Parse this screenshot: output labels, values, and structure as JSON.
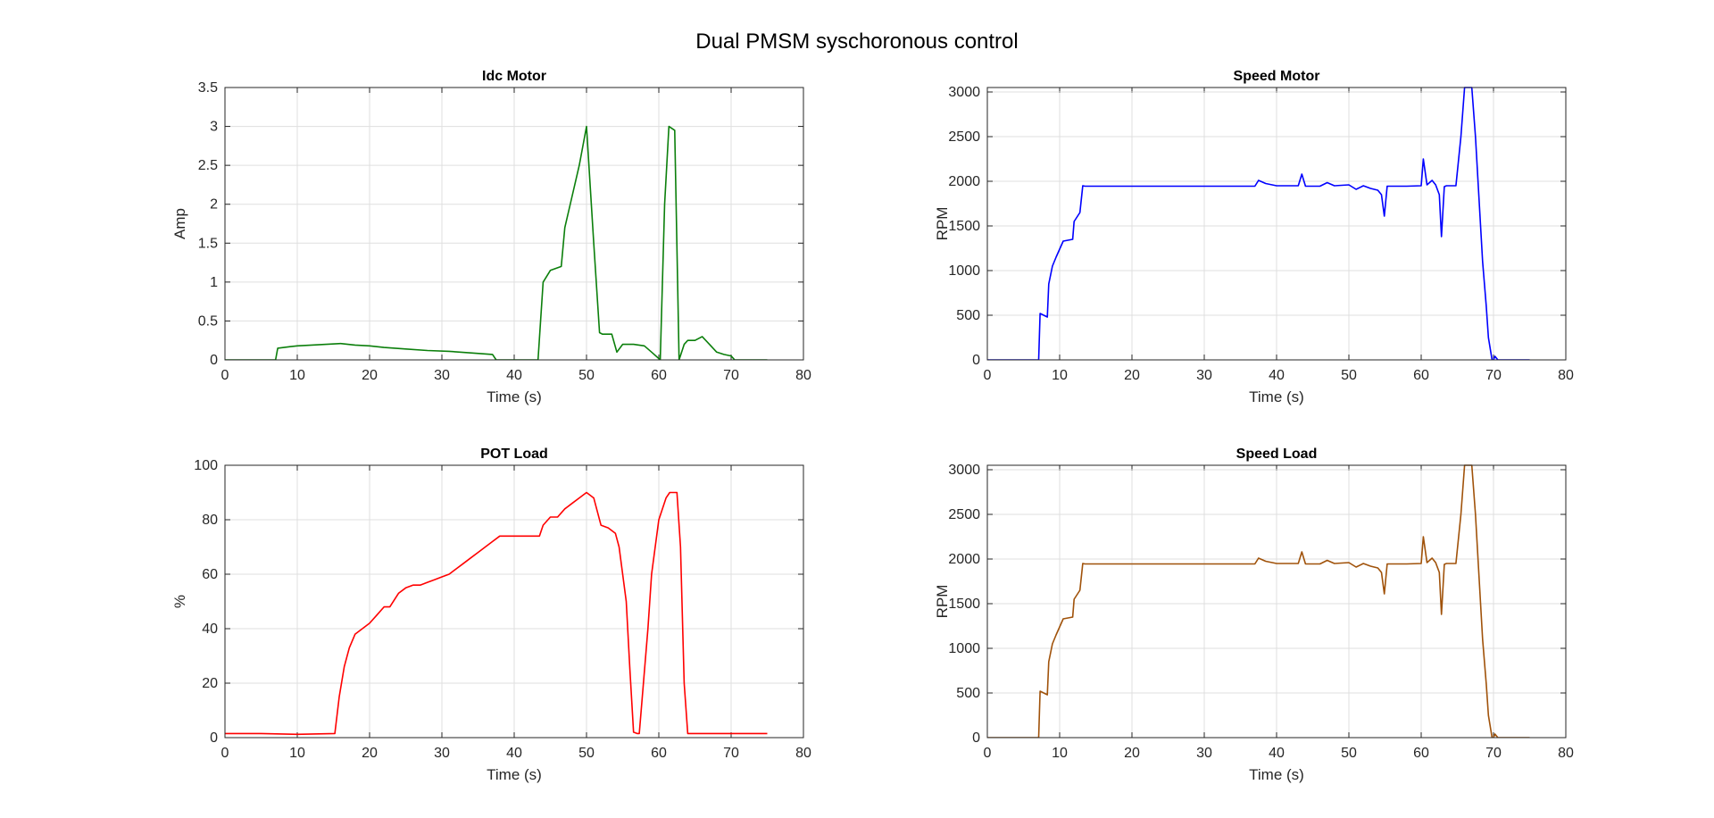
{
  "figure_title": "Dual PMSM syschoronous control",
  "chart_data": [
    {
      "type": "line",
      "title": "Idc Motor",
      "xlabel": "Time (s)",
      "ylabel": "Amp",
      "xlim": [
        0,
        80
      ],
      "ylim": [
        0,
        3.5
      ],
      "xticks": [
        "0",
        "10",
        "20",
        "30",
        "40",
        "50",
        "60",
        "70",
        "80"
      ],
      "yticks": [
        "0",
        "0.5",
        "1",
        "1.5",
        "2",
        "2.5",
        "3",
        "3.5"
      ],
      "grid": true,
      "color": "#0b7f0b",
      "series": [
        {
          "x": [
            0,
            7,
            7.3,
            9,
            10,
            12,
            14,
            16,
            18,
            20,
            22,
            25,
            28,
            31,
            34,
            37,
            37.5,
            43.3,
            44,
            45,
            46.5,
            47,
            48,
            49,
            50,
            51,
            51.8,
            52.2,
            53.5,
            54.2,
            55,
            56.5,
            58,
            59,
            60.2,
            60.8,
            61.4,
            62.2,
            62.8,
            63.5,
            64,
            65,
            66,
            67,
            68,
            69,
            70,
            70.5,
            75
          ],
          "y": [
            0,
            0,
            0.15,
            0.17,
            0.18,
            0.19,
            0.2,
            0.21,
            0.19,
            0.18,
            0.16,
            0.14,
            0.12,
            0.11,
            0.09,
            0.07,
            0,
            0,
            1.0,
            1.15,
            1.2,
            1.7,
            2.1,
            2.5,
            3.0,
            1.5,
            0.35,
            0.33,
            0.33,
            0.1,
            0.2,
            0.2,
            0.18,
            0.1,
            0,
            2.0,
            3.0,
            2.95,
            0,
            0.2,
            0.25,
            0.25,
            0.3,
            0.2,
            0.1,
            0.07,
            0.05,
            0,
            0
          ]
        }
      ]
    },
    {
      "type": "line",
      "title": "Speed Motor",
      "xlabel": "Time (s)",
      "ylabel": "RPM",
      "xlim": [
        0,
        80
      ],
      "ylim": [
        0,
        3050
      ],
      "xticks": [
        "0",
        "10",
        "20",
        "30",
        "40",
        "50",
        "60",
        "70",
        "80"
      ],
      "yticks": [
        "0",
        "500",
        "1000",
        "1500",
        "2000",
        "2500",
        "3000"
      ],
      "grid": true,
      "color": "#0000ff",
      "series": [
        {
          "x": [
            0,
            7.1,
            7.3,
            8.3,
            8.5,
            9,
            9.5,
            10.5,
            11.8,
            12,
            12.8,
            13.2,
            13.5,
            20,
            30,
            37,
            37.5,
            38.5,
            40,
            43,
            43.5,
            44,
            46,
            47,
            48,
            50,
            51,
            52,
            53,
            54,
            54.5,
            54.9,
            55.3,
            56,
            58,
            60,
            60.3,
            60.8,
            61.5,
            62,
            62.5,
            62.8,
            63.2,
            63.5,
            64.8,
            65.5,
            66,
            66.3,
            67,
            67.5,
            68,
            68.5,
            69,
            69.3,
            69.8,
            70,
            70.2,
            70.6,
            75
          ],
          "y": [
            0,
            0,
            520,
            480,
            850,
            1050,
            1150,
            1330,
            1350,
            1550,
            1650,
            1950,
            1945,
            1945,
            1945,
            1945,
            2010,
            1975,
            1950,
            1950,
            2080,
            1945,
            1945,
            1985,
            1950,
            1960,
            1910,
            1950,
            1920,
            1900,
            1850,
            1610,
            1945,
            1945,
            1945,
            1950,
            2250,
            1960,
            2010,
            1960,
            1850,
            1380,
            1940,
            1950,
            1950,
            2500,
            3050,
            3050,
            3050,
            2500,
            1800,
            1100,
            600,
            250,
            0,
            0,
            40,
            0,
            0
          ]
        }
      ]
    },
    {
      "type": "line",
      "title": "POT Load",
      "xlabel": "Time (s)",
      "ylabel": "%",
      "xlim": [
        0,
        80
      ],
      "ylim": [
        0,
        100
      ],
      "xticks": [
        "0",
        "10",
        "20",
        "30",
        "40",
        "50",
        "60",
        "70",
        "80"
      ],
      "yticks": [
        "0",
        "20",
        "40",
        "60",
        "80",
        "100"
      ],
      "grid": true,
      "color": "#ff0000",
      "series": [
        {
          "x": [
            0,
            5,
            10,
            15.2,
            15.8,
            16.5,
            17.2,
            18,
            19,
            20,
            21,
            22,
            22.8,
            24,
            25,
            26,
            27,
            28,
            29,
            30,
            31,
            32,
            33,
            34,
            35,
            36,
            37,
            38,
            39,
            40,
            41,
            42,
            43.5,
            44,
            45,
            46,
            47,
            48,
            49,
            50,
            51,
            52,
            53,
            54,
            54.5,
            55.5,
            56,
            56.5,
            57,
            57.3,
            58.5,
            59,
            60,
            61,
            61.5,
            62,
            62.5,
            63,
            63.5,
            64,
            70,
            75
          ],
          "y": [
            1.5,
            1.5,
            1.2,
            1.5,
            15,
            26,
            33,
            38,
            40,
            42,
            45,
            48,
            48,
            53,
            55,
            56,
            56,
            57,
            58,
            59,
            60,
            62,
            64,
            66,
            68,
            70,
            72,
            74,
            74,
            74,
            74,
            74,
            74,
            78,
            81,
            81,
            84,
            86,
            88,
            90,
            88,
            78,
            77,
            75,
            70,
            50,
            25,
            2,
            1.5,
            1.5,
            40,
            60,
            80,
            88,
            90,
            90,
            90,
            70,
            20,
            1.5,
            1.5,
            1.5
          ]
        }
      ]
    },
    {
      "type": "line",
      "title": "Speed Load",
      "xlabel": "Time (s)",
      "ylabel": "RPM",
      "xlim": [
        0,
        80
      ],
      "ylim": [
        0,
        3050
      ],
      "xticks": [
        "0",
        "10",
        "20",
        "30",
        "40",
        "50",
        "60",
        "70",
        "80"
      ],
      "yticks": [
        "0",
        "500",
        "1000",
        "1500",
        "2000",
        "2500",
        "3000"
      ],
      "grid": true,
      "color": "#a0520a",
      "series": [
        {
          "x": [
            0,
            7.1,
            7.3,
            8.3,
            8.5,
            9,
            9.5,
            10.5,
            11.8,
            12,
            12.8,
            13.2,
            13.5,
            20,
            30,
            37,
            37.5,
            38.5,
            40,
            43,
            43.5,
            44,
            46,
            47,
            48,
            50,
            51,
            52,
            53,
            54,
            54.5,
            54.9,
            55.3,
            56,
            58,
            60,
            60.3,
            60.8,
            61.5,
            62,
            62.5,
            62.8,
            63.2,
            63.5,
            64.8,
            65.5,
            66,
            66.3,
            67,
            67.5,
            68,
            68.5,
            69,
            69.3,
            69.8,
            70,
            70.2,
            70.6,
            75
          ],
          "y": [
            0,
            0,
            520,
            480,
            850,
            1050,
            1150,
            1330,
            1350,
            1550,
            1650,
            1950,
            1945,
            1945,
            1945,
            1945,
            2010,
            1975,
            1950,
            1950,
            2080,
            1945,
            1945,
            1985,
            1950,
            1960,
            1910,
            1950,
            1920,
            1900,
            1850,
            1610,
            1945,
            1945,
            1945,
            1950,
            2250,
            1960,
            2010,
            1960,
            1850,
            1380,
            1940,
            1950,
            1950,
            2500,
            3050,
            3050,
            3050,
            2500,
            1800,
            1100,
            600,
            250,
            0,
            0,
            40,
            0,
            0
          ]
        }
      ]
    }
  ]
}
